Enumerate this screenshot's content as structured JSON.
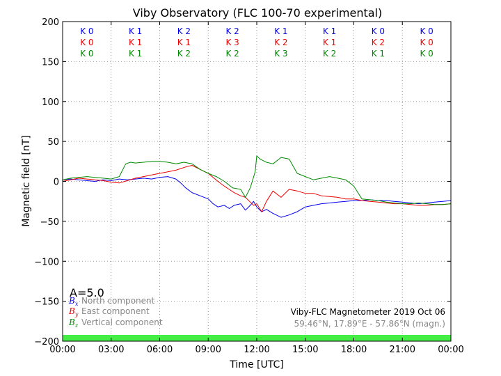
{
  "chart_data": {
    "type": "line",
    "title": "Viby Observatory (FLC 100-70 experimental)",
    "xlabel": "Time [UTC]",
    "ylabel": "Magnetic field [nT]",
    "xlim": [
      0,
      24
    ],
    "ylim": [
      -200,
      200
    ],
    "grid": true,
    "xticks": [
      {
        "value": 0,
        "label": "00:00"
      },
      {
        "value": 3,
        "label": "03:00"
      },
      {
        "value": 6,
        "label": "06:00"
      },
      {
        "value": 9,
        "label": "09:00"
      },
      {
        "value": 12,
        "label": "12:00"
      },
      {
        "value": 15,
        "label": "15:00"
      },
      {
        "value": 18,
        "label": "18:00"
      },
      {
        "value": 21,
        "label": "21:00"
      },
      {
        "value": 24,
        "label": "00:00"
      }
    ],
    "yticks": [
      {
        "value": 200,
        "label": "200"
      },
      {
        "value": 150,
        "label": "150"
      },
      {
        "value": 100,
        "label": "100"
      },
      {
        "value": 50,
        "label": "50"
      },
      {
        "value": 0,
        "label": "0"
      },
      {
        "value": -50,
        "label": "−50"
      },
      {
        "value": -100,
        "label": "−100"
      },
      {
        "value": -150,
        "label": "−150"
      },
      {
        "value": -200,
        "label": "−200"
      }
    ],
    "k_indices": {
      "interval_centers": [
        1.5,
        4.5,
        7.5,
        10.5,
        13.5,
        16.5,
        19.5,
        22.5
      ],
      "rows": [
        {
          "color": "#0000ee",
          "labels": [
            "K 0",
            "K 1",
            "K 2",
            "K 2",
            "K 1",
            "K 1",
            "K 0",
            "K 0"
          ]
        },
        {
          "color": "#ee0000",
          "labels": [
            "K 0",
            "K 1",
            "K 1",
            "K 3",
            "K 2",
            "K 1",
            "K 2",
            "K 0"
          ]
        },
        {
          "color": "#008800",
          "labels": [
            "K 0",
            "K 1",
            "K 2",
            "K 2",
            "K 3",
            "K 2",
            "K 1",
            "K 0"
          ]
        }
      ]
    },
    "a_index": "A=5.0",
    "legend": {
      "placement": "bottom-left",
      "entries": [
        {
          "symbol": "B",
          "sub": "x",
          "text": "North component",
          "color": "#0000ee"
        },
        {
          "symbol": "B",
          "sub": "y",
          "text": "East component",
          "color": "#ee0000"
        },
        {
          "symbol": "B",
          "sub": "z",
          "text": "Vertical component",
          "color": "#008800"
        }
      ]
    },
    "info_line1": "Viby-FLC Magnetometer 2019 Oct 06",
    "info_line2": "59.46°N, 17.89°E - 57.86°N (magn.)",
    "status_bar_color": "#44ee44",
    "series": [
      {
        "name": "North component",
        "color": "#0000ee",
        "x": [
          0,
          0.5,
          1,
          1.5,
          2,
          2.5,
          3,
          3.5,
          4,
          4.5,
          5,
          5.5,
          6,
          6.5,
          7,
          7.3,
          7.6,
          8,
          8.5,
          9,
          9.3,
          9.6,
          10,
          10.3,
          10.6,
          11,
          11.3,
          11.6,
          11.8,
          12,
          12.3,
          12.6,
          13,
          13.5,
          14,
          14.5,
          15,
          15.5,
          16,
          16.5,
          17,
          17.5,
          18,
          18.5,
          19,
          19.5,
          20,
          20.5,
          21,
          21.5,
          22,
          22.5,
          23,
          23.5,
          24
        ],
        "y": [
          2,
          3,
          2,
          1,
          0,
          2,
          1,
          3,
          2,
          3,
          4,
          3,
          5,
          6,
          3,
          -2,
          -8,
          -14,
          -18,
          -22,
          -28,
          -32,
          -30,
          -34,
          -30,
          -28,
          -36,
          -30,
          -25,
          -32,
          -38,
          -35,
          -40,
          -45,
          -42,
          -38,
          -32,
          -30,
          -28,
          -27,
          -26,
          -25,
          -24,
          -24,
          -23,
          -24,
          -24,
          -25,
          -26,
          -27,
          -28,
          -27,
          -26,
          -25,
          -24
        ]
      },
      {
        "name": "East component",
        "color": "#ee0000",
        "x": [
          0,
          0.5,
          1,
          1.5,
          2,
          2.5,
          3,
          3.5,
          4,
          4.5,
          5,
          5.5,
          6,
          6.5,
          7,
          7.3,
          7.6,
          8,
          8.5,
          9,
          9.3,
          9.6,
          10,
          10.3,
          10.6,
          11,
          11.3,
          11.6,
          11.8,
          12,
          12.3,
          12.6,
          13,
          13.5,
          14,
          14.5,
          15,
          15.5,
          16,
          16.5,
          17,
          17.5,
          18,
          18.5,
          19,
          19.5,
          20,
          20.5,
          21,
          21.5,
          22,
          22.5,
          23,
          23.5,
          24
        ],
        "y": [
          0,
          2,
          4,
          3,
          2,
          1,
          -1,
          -2,
          1,
          4,
          6,
          8,
          10,
          12,
          14,
          16,
          18,
          20,
          15,
          10,
          5,
          0,
          -6,
          -10,
          -14,
          -18,
          -20,
          -26,
          -30,
          -28,
          -38,
          -25,
          -12,
          -20,
          -10,
          -12,
          -15,
          -15,
          -18,
          -19,
          -20,
          -22,
          -22,
          -24,
          -25,
          -26,
          -27,
          -28,
          -28,
          -29,
          -30,
          -30,
          -29,
          -29,
          -28
        ]
      },
      {
        "name": "Vertical component",
        "color": "#008800",
        "x": [
          0,
          0.5,
          1,
          1.5,
          2,
          2.5,
          3,
          3.5,
          3.9,
          4.2,
          4.5,
          5,
          5.5,
          6,
          6.5,
          7,
          7.5,
          8,
          8.5,
          9,
          9.5,
          10,
          10.5,
          11,
          11.3,
          11.6,
          11.9,
          12,
          12.2,
          12.6,
          13,
          13.5,
          14,
          14.5,
          15,
          15.5,
          16,
          16.5,
          17,
          17.5,
          18,
          18.5,
          19,
          19.5,
          20,
          20.5,
          21,
          21.5,
          22,
          22.5,
          23,
          23.5,
          24
        ],
        "y": [
          2,
          4,
          5,
          6,
          5,
          4,
          3,
          6,
          22,
          24,
          23,
          24,
          25,
          25,
          24,
          22,
          24,
          22,
          15,
          10,
          6,
          0,
          -8,
          -10,
          -20,
          -8,
          12,
          32,
          28,
          24,
          22,
          30,
          28,
          10,
          6,
          2,
          4,
          6,
          4,
          2,
          -6,
          -22,
          -23,
          -24,
          -26,
          -27,
          -28,
          -28,
          -27,
          -28,
          -29,
          -29,
          -28
        ]
      }
    ]
  }
}
